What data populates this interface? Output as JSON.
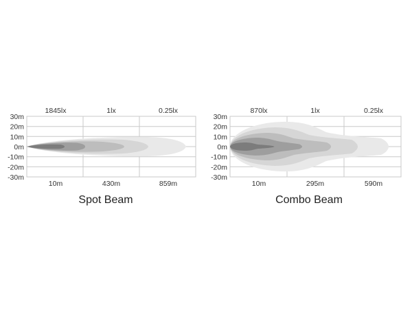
{
  "chart_data": [
    {
      "type": "other",
      "title": "Spot Beam",
      "y_tick_labels": [
        "30m",
        "20m",
        "10m",
        "0m",
        "-10m",
        "-20m",
        "-30m"
      ],
      "y_values": [
        30,
        20,
        10,
        0,
        -10,
        -20,
        -30
      ],
      "lux_labels": [
        "1845lx",
        "1lx",
        "0.25lx"
      ],
      "distance_labels": [
        "10m",
        "430m",
        "859m"
      ],
      "beam_colors": [
        "#e9e9e9",
        "#d6d6d6",
        "#bdbdbd",
        "#9e9e9e",
        "#7c7c7c"
      ]
    },
    {
      "type": "other",
      "title": "Combo Beam",
      "y_tick_labels": [
        "30m",
        "20m",
        "10m",
        "0m",
        "-10m",
        "-20m",
        "-30m"
      ],
      "y_values": [
        30,
        20,
        10,
        0,
        -10,
        -20,
        -30
      ],
      "lux_labels": [
        "870lx",
        "1lx",
        "0.25lx"
      ],
      "distance_labels": [
        "10m",
        "295m",
        "590m"
      ],
      "beam_colors": [
        "#e9e9e9",
        "#d6d6d6",
        "#bdbdbd",
        "#9e9e9e",
        "#7c7c7c"
      ]
    }
  ]
}
